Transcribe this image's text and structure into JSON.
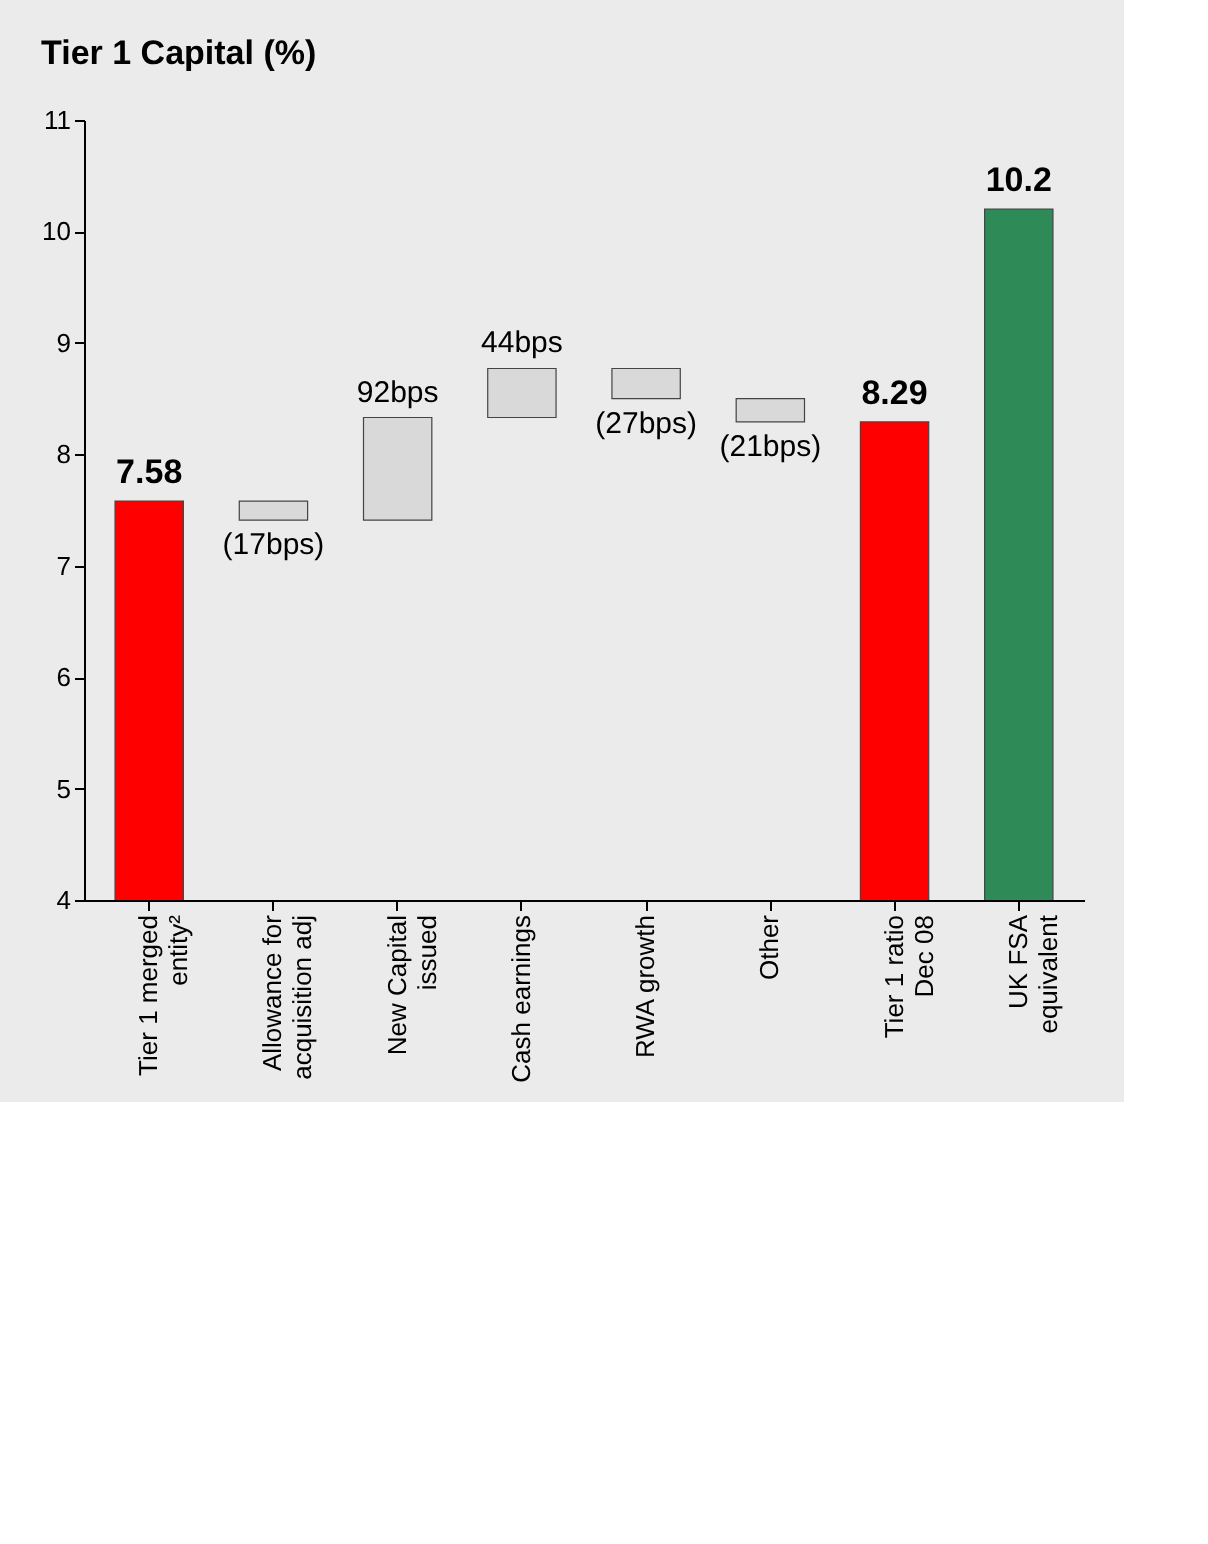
{
  "chart_data": {
    "type": "bar",
    "title": "Tier 1 Capital (%)",
    "categories": [
      "Tier 1 merged entity²",
      "Allowance for acquisition adj",
      "New Capital issued",
      "Cash earnings",
      "RWA growth",
      "Other",
      "Tier 1 ratio Dec 08",
      "UK FSA equivalent"
    ],
    "values": [
      7.58,
      -0.17,
      0.92,
      0.44,
      -0.27,
      -0.21,
      8.29,
      10.2
    ],
    "base": [
      null,
      7.58,
      7.41,
      8.33,
      8.77,
      8.5,
      null,
      null
    ],
    "colors": [
      "#ff0000",
      "#d9d9d9",
      "#d9d9d9",
      "#d9d9d9",
      "#d9d9d9",
      "#d9d9d9",
      "#ff0000",
      "#2e8b57"
    ],
    "value_labels": [
      "7.58",
      null,
      null,
      null,
      null,
      null,
      "8.29",
      "10.2"
    ],
    "annotations": [
      {
        "text": "(17bps)",
        "x": "Allowance for acquisition adj",
        "y": 7.41
      },
      {
        "text": "92bps",
        "x": "New Capital issued",
        "y": 8.33
      },
      {
        "text": "44bps",
        "x": "Cash earnings",
        "y": 8.77
      },
      {
        "text": "(27bps)",
        "x": "RWA growth",
        "y": 8.5
      },
      {
        "text": "(21bps)",
        "x": "Other",
        "y": 8.29
      }
    ],
    "ylim": [
      4,
      11
    ],
    "yticks": [
      4,
      5,
      6,
      7,
      8,
      9,
      10,
      11
    ],
    "grid": false
  }
}
